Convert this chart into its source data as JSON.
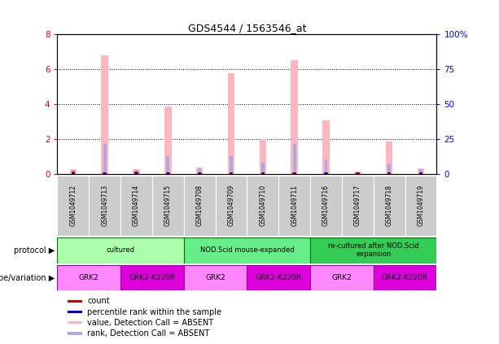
{
  "title": "GDS4544 / 1563546_at",
  "samples": [
    "GSM1049712",
    "GSM1049713",
    "GSM1049714",
    "GSM1049715",
    "GSM1049708",
    "GSM1049709",
    "GSM1049710",
    "GSM1049711",
    "GSM1049716",
    "GSM1049717",
    "GSM1049718",
    "GSM1049719"
  ],
  "pink_bars": [
    0.25,
    6.8,
    0.25,
    3.85,
    0.35,
    5.75,
    2.0,
    6.5,
    3.05,
    0.1,
    1.85,
    0.3
  ],
  "blue_bars_raw": [
    0.2,
    1.7,
    0.2,
    1.0,
    0.3,
    1.0,
    0.65,
    1.7,
    0.8,
    0.07,
    0.6,
    0.25
  ],
  "red_count": [
    0.12,
    0.08,
    0.12,
    0.08,
    0.08,
    0.08,
    0.08,
    0.08,
    0.08,
    0.08,
    0.08,
    0.08
  ],
  "blue_count": [
    0.08,
    0.08,
    0.08,
    0.08,
    0.08,
    0.08,
    0.08,
    0.08,
    0.08,
    0.08,
    0.08,
    0.08
  ],
  "ylim_left": [
    0,
    8
  ],
  "ylim_right": [
    0,
    100
  ],
  "yticks_left": [
    0,
    2,
    4,
    6,
    8
  ],
  "yticks_right": [
    0,
    25,
    50,
    75,
    100
  ],
  "ytick_labels_right": [
    "0",
    "25",
    "50",
    "75",
    "100%"
  ],
  "pink_color": "#FFB6C1",
  "blue_bar_color": "#AAAADD",
  "red_color": "#CC0000",
  "blue_count_color": "#0000CC",
  "proto_colors": [
    "#AAFFAA",
    "#66EE88",
    "#44DD66"
  ],
  "proto_labels": [
    "cultured",
    "NOD.Scid mouse-expanded",
    "re-cultured after NOD.Scid\nexpansion"
  ],
  "proto_starts": [
    0,
    4,
    8
  ],
  "proto_ends": [
    4,
    8,
    12
  ],
  "geno_colors": [
    "#FF66FF",
    "#EE00EE",
    "#FF66FF",
    "#EE00EE",
    "#FF66FF",
    "#EE00EE"
  ],
  "geno_labels": [
    "GRK2",
    "GRK2-K220R",
    "GRK2",
    "GRK2-K220R",
    "GRK2",
    "GRK2-K220R"
  ],
  "geno_starts": [
    0,
    2,
    4,
    6,
    8,
    10
  ],
  "geno_ends": [
    2,
    4,
    6,
    8,
    10,
    12
  ],
  "legend_items": [
    {
      "label": "count",
      "color": "#CC0000"
    },
    {
      "label": "percentile rank within the sample",
      "color": "#0000CC"
    },
    {
      "label": "value, Detection Call = ABSENT",
      "color": "#FFB6C1"
    },
    {
      "label": "rank, Detection Call = ABSENT",
      "color": "#AAAADD"
    }
  ]
}
